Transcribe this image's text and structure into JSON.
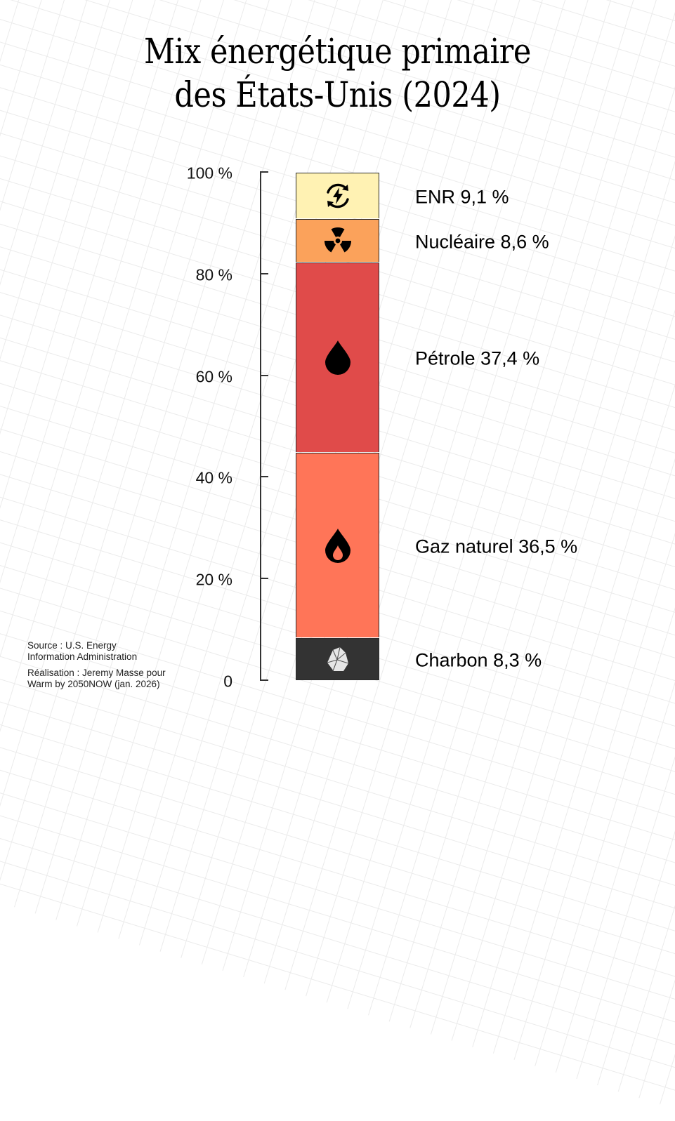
{
  "title": {
    "line1": "Mix énergétique primaire",
    "line2": "des États-Unis (2024)"
  },
  "axis": {
    "ticks": [
      {
        "value": 100,
        "label": "100 %"
      },
      {
        "value": 80,
        "label": "80 %"
      },
      {
        "value": 60,
        "label": "60 %"
      },
      {
        "value": 40,
        "label": "40 %"
      },
      {
        "value": 20,
        "label": "20 %"
      },
      {
        "value": 0,
        "label": "0"
      }
    ]
  },
  "segments": [
    {
      "key": "enr",
      "name": "ENR",
      "value": 9.1,
      "label": "ENR 9,1 %",
      "color": "#FFF2B3",
      "icon": "renewable-energy-icon"
    },
    {
      "key": "nucleaire",
      "name": "Nucléaire",
      "value": 8.6,
      "label": "Nucléaire 8,6 %",
      "color": "#FBA25B",
      "icon": "radiation-icon"
    },
    {
      "key": "petrole",
      "name": "Pétrole",
      "value": 37.4,
      "label": "Pétrole 37,4 %",
      "color": "#E04B4A",
      "icon": "oil-drop-icon"
    },
    {
      "key": "gaz",
      "name": "Gaz naturel",
      "value": 36.5,
      "label": "Gaz naturel 36,5 %",
      "color": "#FF7558",
      "icon": "gas-flame-icon"
    },
    {
      "key": "charbon",
      "name": "Charbon",
      "value": 8.3,
      "label": "Charbon 8,3 %",
      "color": "#333333",
      "icon": "coal-rock-icon"
    }
  ],
  "footer": {
    "source_line1": "Source : U.S. Energy",
    "source_line2": "Information Administration",
    "credit_line1": "Réalisation : Jeremy Masse pour",
    "credit_line2": "Warm by 2050NOW (jan. 2026)"
  },
  "chart_data": {
    "type": "bar",
    "subtype": "stacked-100",
    "title": "Mix énergétique primaire des États-Unis (2024)",
    "xlabel": "",
    "ylabel": "",
    "ylim": [
      0,
      100
    ],
    "yticks": [
      "0",
      "20 %",
      "40 %",
      "60 %",
      "80 %",
      "100 %"
    ],
    "grid": false,
    "legend_position": "inline-right",
    "categories": [
      "Charbon",
      "Gaz naturel",
      "Pétrole",
      "Nucléaire",
      "ENR"
    ],
    "values": [
      8.3,
      36.5,
      37.4,
      8.6,
      9.1
    ],
    "colors": [
      "#333333",
      "#FF7558",
      "#E04B4A",
      "#FBA25B",
      "#FFF2B3"
    ],
    "annotations": [
      "Source : U.S. Energy Information Administration",
      "Réalisation : Jeremy Masse pour Warm by 2050NOW (jan. 2026)"
    ]
  }
}
